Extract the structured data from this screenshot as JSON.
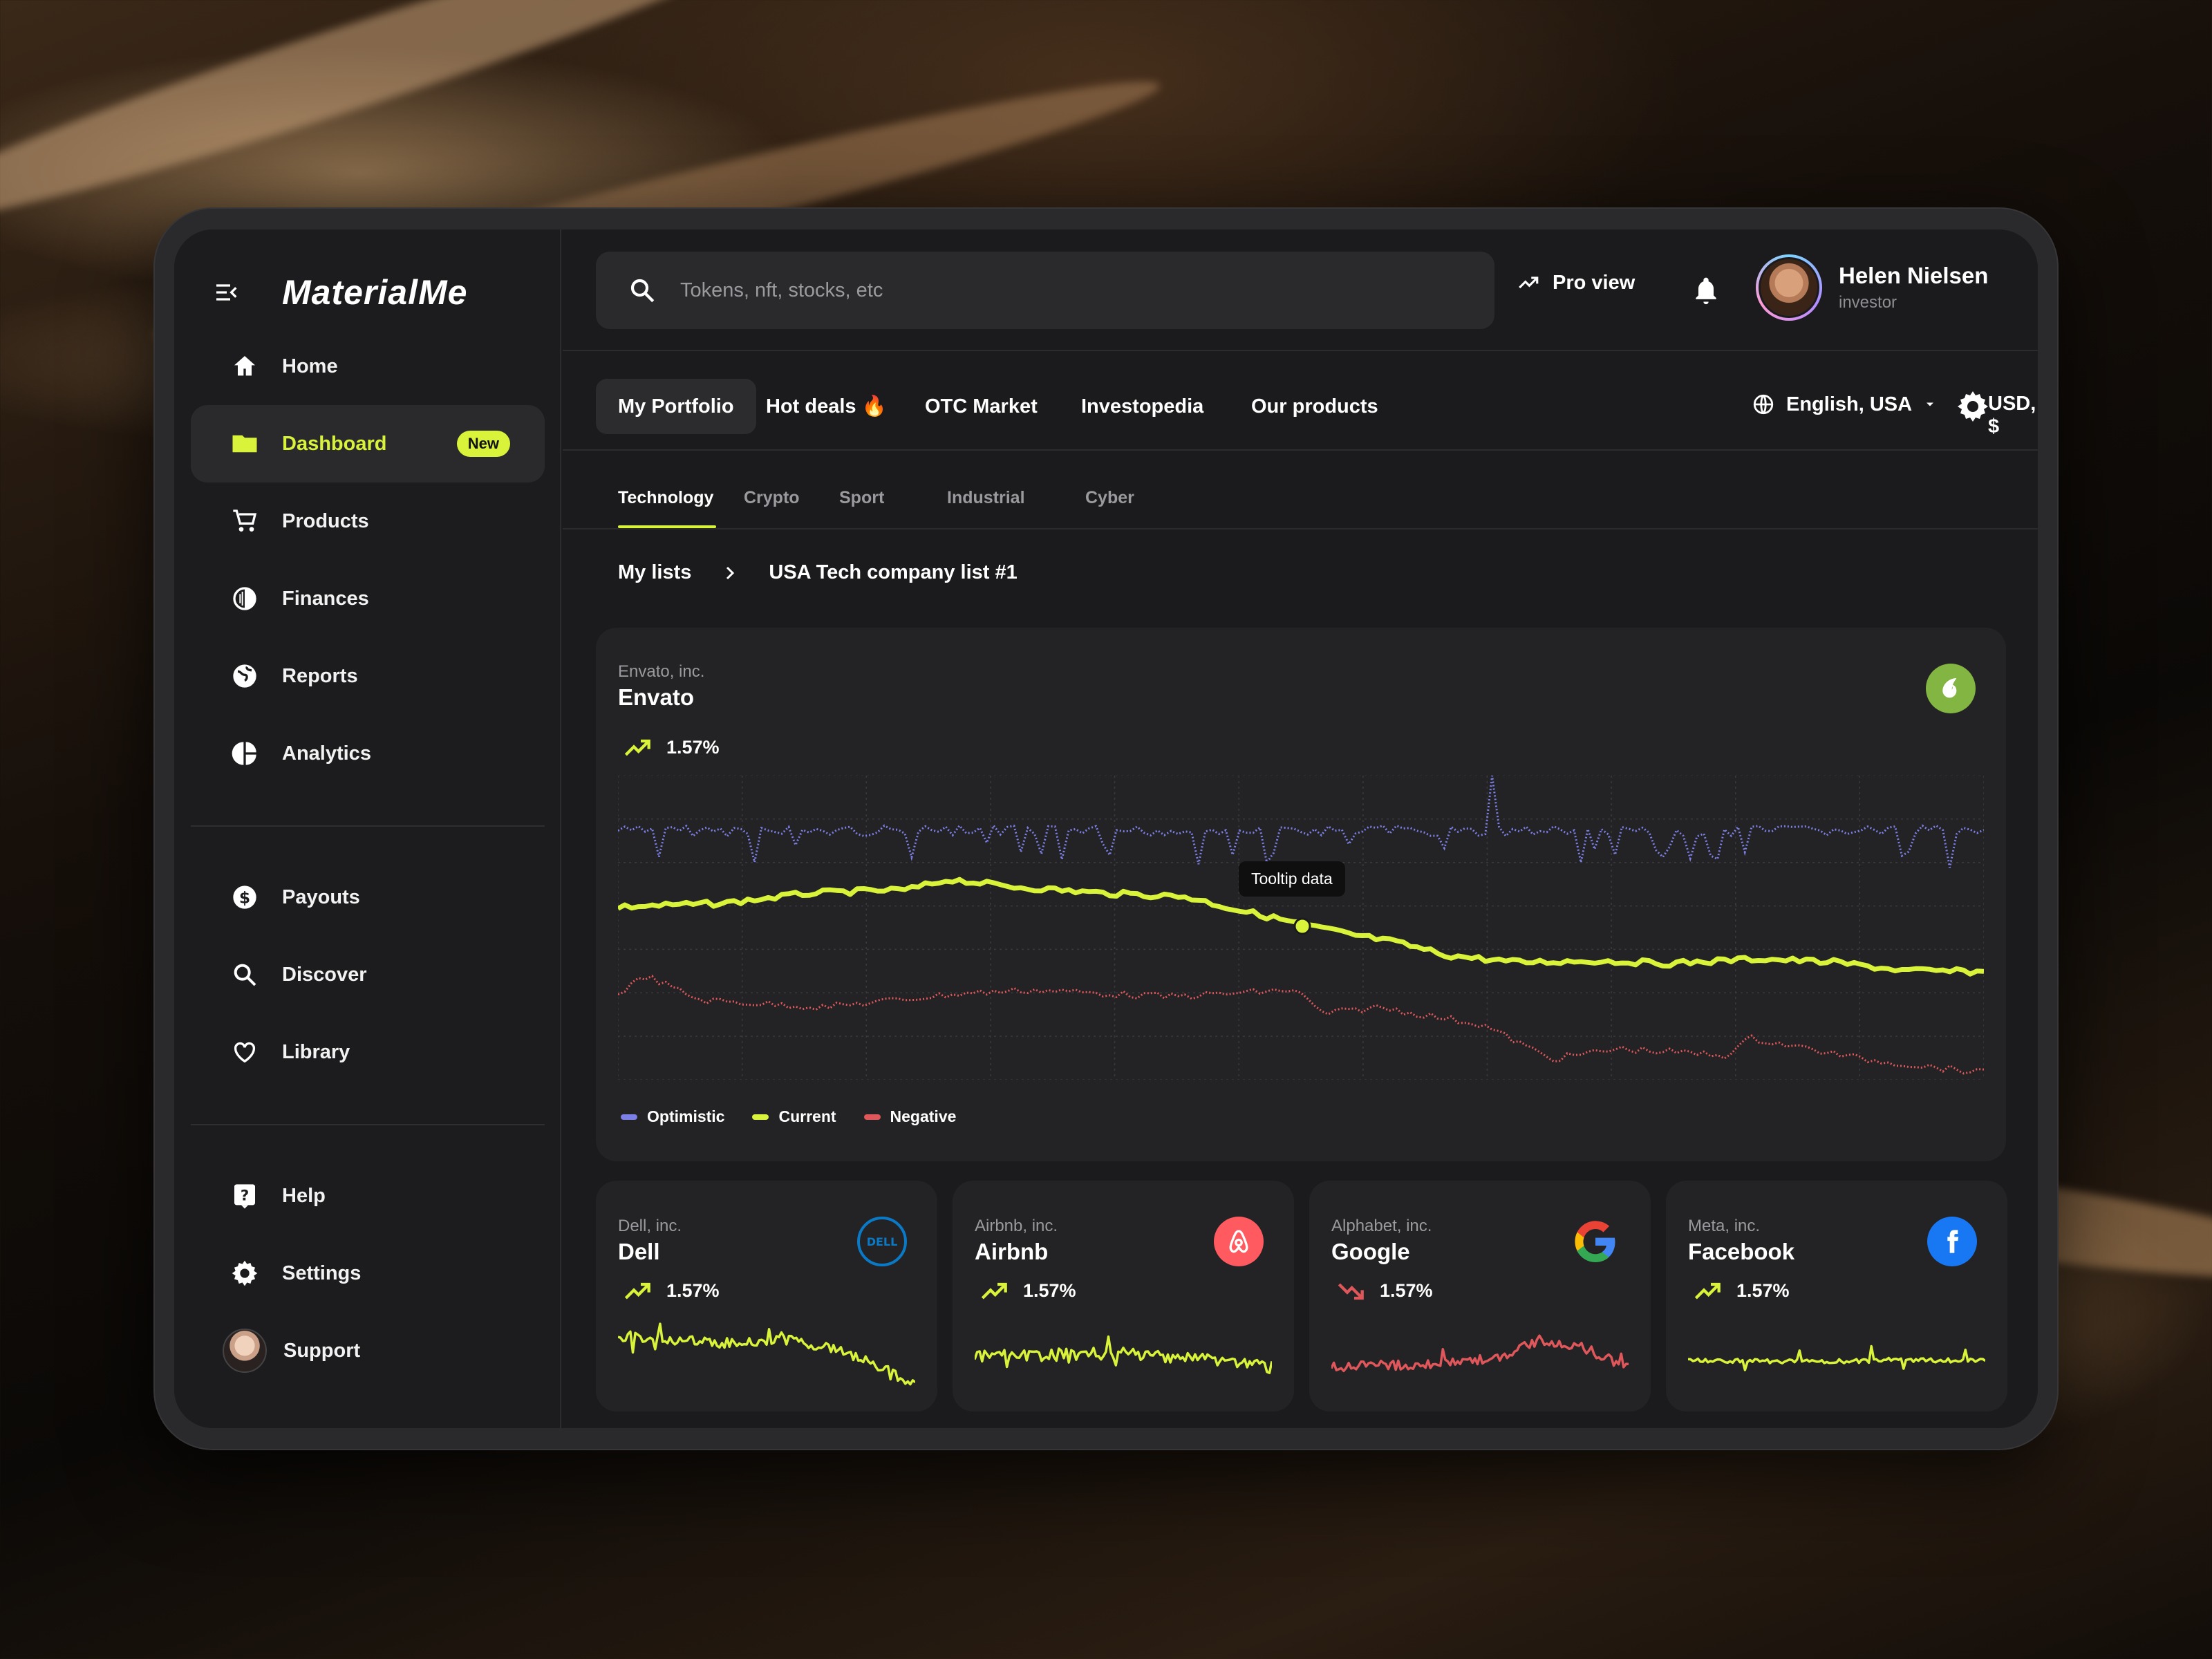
{
  "app": {
    "logo": "MaterialMe"
  },
  "sidebar": {
    "items": [
      {
        "label": "Home",
        "icon": "home-icon"
      },
      {
        "label": "Dashboard",
        "icon": "folder-icon",
        "badge": "New",
        "active": true
      },
      {
        "label": "Products",
        "icon": "cart-icon"
      },
      {
        "label": "Finances",
        "icon": "contrast-icon"
      },
      {
        "label": "Reports",
        "icon": "globe-icon"
      },
      {
        "label": "Analytics",
        "icon": "pie-chart-icon"
      }
    ],
    "items2": [
      {
        "label": "Payouts",
        "icon": "dollar-icon"
      },
      {
        "label": "Discover",
        "icon": "search-icon"
      },
      {
        "label": "Library",
        "icon": "heart-icon"
      }
    ],
    "items3": [
      {
        "label": "Help",
        "icon": "help-icon"
      },
      {
        "label": "Settings",
        "icon": "gear-icon"
      },
      {
        "label": "Support",
        "icon": "avatar"
      }
    ]
  },
  "header": {
    "search_placeholder": "Tokens, nft, stocks, etc",
    "pro_view": "Pro view",
    "user": {
      "name": "Helen Nielsen",
      "role": "investor"
    }
  },
  "secondary_nav": {
    "tabs": [
      "My Portfolio",
      "Hot deals 🔥",
      "OTC Market",
      "Investopedia",
      "Our products"
    ],
    "active_tab": "My Portfolio",
    "language": "English, USA",
    "currency": "USD, $"
  },
  "category_tabs": {
    "tabs": [
      "Technology",
      "Crypto",
      "Sport",
      "Industrial",
      "Cyber"
    ],
    "active": "Technology"
  },
  "breadcrumb": {
    "root": "My lists",
    "current": "USA Tech company list #1"
  },
  "main_card": {
    "company_full": "Envato, inc.",
    "company": "Envato",
    "change": "1.57%",
    "tooltip": "Tooltip data",
    "legend": [
      "Optimistic",
      "Current",
      "Negative"
    ]
  },
  "small_cards": [
    {
      "company_full": "Dell, inc.",
      "company": "Dell",
      "change": "1.57%",
      "trend": "up"
    },
    {
      "company_full": "Airbnb, inc.",
      "company": "Airbnb",
      "change": "1.57%",
      "trend": "up"
    },
    {
      "company_full": "Alphabet, inc.",
      "company": "Google",
      "change": "1.57%",
      "trend": "down"
    },
    {
      "company_full": "Meta, inc.",
      "company": "Facebook",
      "change": "1.57%",
      "trend": "up"
    }
  ],
  "colors": {
    "accent": "#d9f23a",
    "optimistic": "#7b7fe6",
    "negative": "#e0575b",
    "envato": "#82b541",
    "airbnb": "#ff5a5f",
    "facebook": "#1877f2",
    "dell": "#0a7ac7"
  }
}
